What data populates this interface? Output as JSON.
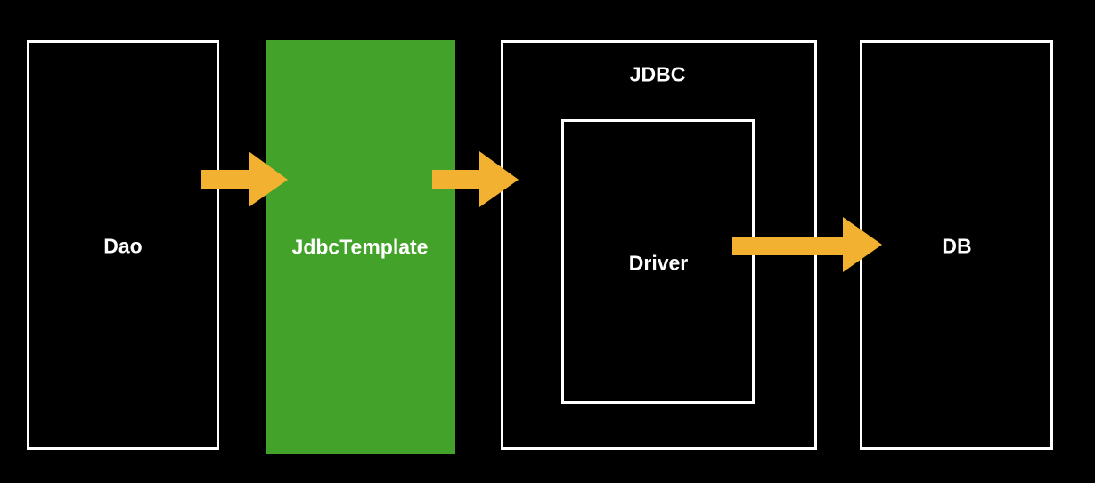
{
  "colors": {
    "background": "#000000",
    "border": "#ffffff",
    "highlight_fill": "#43a22a",
    "arrow": "#f2b130",
    "text": "#ffffff"
  },
  "nodes": {
    "dao": {
      "label": "Dao"
    },
    "jdbc_template": {
      "label": "JdbcTemplate"
    },
    "jdbc": {
      "label": "JDBC"
    },
    "driver": {
      "label": "Driver"
    },
    "db": {
      "label": "DB"
    }
  },
  "edges": [
    {
      "from": "dao",
      "to": "jdbc_template"
    },
    {
      "from": "jdbc_template",
      "to": "jdbc"
    },
    {
      "from": "driver",
      "to": "db"
    }
  ]
}
